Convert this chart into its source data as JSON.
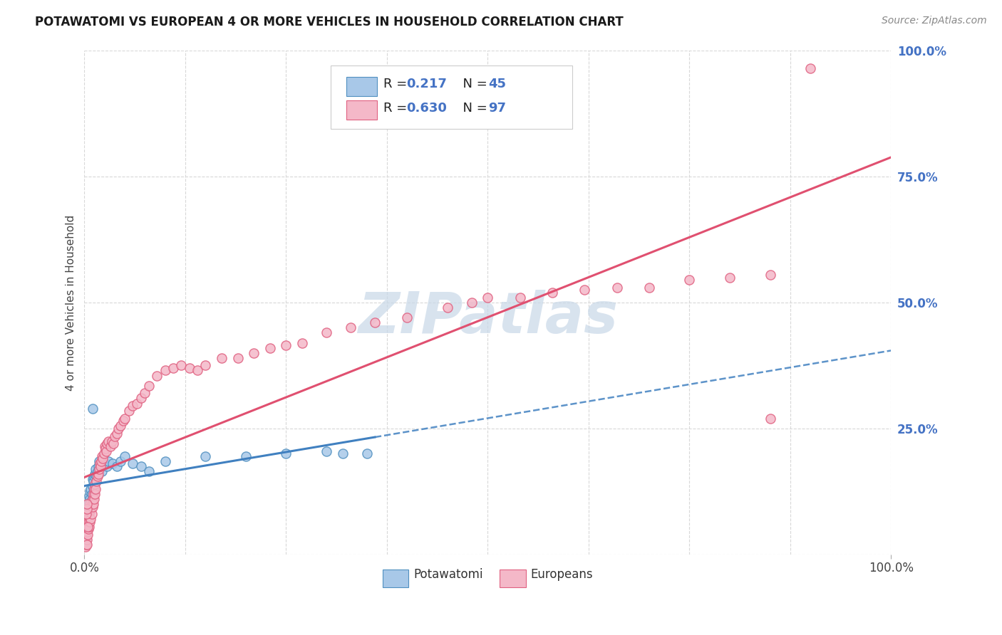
{
  "title": "POTAWATOMI VS EUROPEAN 4 OR MORE VEHICLES IN HOUSEHOLD CORRELATION CHART",
  "source": "Source: ZipAtlas.com",
  "ylabel": "4 or more Vehicles in Household",
  "blue_color": "#a8c8e8",
  "pink_color": "#f4b8c8",
  "blue_edge_color": "#5090c0",
  "pink_edge_color": "#e06080",
  "blue_line_color": "#4080c0",
  "pink_line_color": "#e05070",
  "watermark_color": "#c8d8e8",
  "grid_color": "#d8d8d8",
  "background_color": "#ffffff",
  "right_tick_color": "#4472c4",
  "legend_r_color": "#222222",
  "legend_n_color": "#4472c4",
  "blue_r": "0.217",
  "blue_n": "45",
  "pink_r": "0.630",
  "pink_n": "97",
  "blue_label": "Potawatomi",
  "pink_label": "Europeans",
  "xlim": [
    0.0,
    1.0
  ],
  "ylim": [
    0.0,
    1.0
  ],
  "blue_x": [
    0.001,
    0.002,
    0.003,
    0.003,
    0.004,
    0.004,
    0.005,
    0.005,
    0.006,
    0.006,
    0.007,
    0.007,
    0.008,
    0.008,
    0.009,
    0.01,
    0.01,
    0.011,
    0.012,
    0.013,
    0.014,
    0.015,
    0.016,
    0.017,
    0.018,
    0.02,
    0.022,
    0.025,
    0.028,
    0.03,
    0.035,
    0.04,
    0.045,
    0.05,
    0.06,
    0.07,
    0.08,
    0.1,
    0.15,
    0.2,
    0.25,
    0.3,
    0.32,
    0.35,
    0.01
  ],
  "blue_y": [
    0.03,
    0.045,
    0.06,
    0.075,
    0.08,
    0.095,
    0.085,
    0.1,
    0.095,
    0.115,
    0.11,
    0.125,
    0.105,
    0.13,
    0.12,
    0.135,
    0.15,
    0.145,
    0.155,
    0.16,
    0.17,
    0.155,
    0.165,
    0.175,
    0.185,
    0.175,
    0.165,
    0.18,
    0.175,
    0.185,
    0.18,
    0.175,
    0.185,
    0.195,
    0.18,
    0.175,
    0.165,
    0.185,
    0.195,
    0.195,
    0.2,
    0.205,
    0.2,
    0.2,
    0.29
  ],
  "pink_x": [
    0.001,
    0.001,
    0.002,
    0.002,
    0.003,
    0.003,
    0.003,
    0.004,
    0.004,
    0.004,
    0.005,
    0.005,
    0.005,
    0.006,
    0.006,
    0.006,
    0.007,
    0.007,
    0.007,
    0.008,
    0.008,
    0.009,
    0.009,
    0.01,
    0.01,
    0.011,
    0.011,
    0.012,
    0.012,
    0.013,
    0.013,
    0.014,
    0.015,
    0.016,
    0.017,
    0.018,
    0.019,
    0.02,
    0.021,
    0.022,
    0.023,
    0.024,
    0.025,
    0.026,
    0.027,
    0.028,
    0.03,
    0.032,
    0.034,
    0.036,
    0.038,
    0.04,
    0.042,
    0.045,
    0.048,
    0.05,
    0.055,
    0.06,
    0.065,
    0.07,
    0.075,
    0.08,
    0.09,
    0.1,
    0.11,
    0.12,
    0.13,
    0.14,
    0.15,
    0.17,
    0.19,
    0.21,
    0.23,
    0.25,
    0.27,
    0.3,
    0.33,
    0.36,
    0.4,
    0.45,
    0.48,
    0.5,
    0.54,
    0.58,
    0.62,
    0.66,
    0.7,
    0.75,
    0.8,
    0.85,
    0.9,
    0.002,
    0.003,
    0.003,
    0.004,
    0.003,
    0.85
  ],
  "pink_y": [
    0.015,
    0.025,
    0.02,
    0.035,
    0.03,
    0.045,
    0.055,
    0.04,
    0.06,
    0.07,
    0.05,
    0.065,
    0.08,
    0.055,
    0.075,
    0.095,
    0.065,
    0.085,
    0.1,
    0.07,
    0.09,
    0.08,
    0.1,
    0.095,
    0.11,
    0.1,
    0.12,
    0.11,
    0.13,
    0.12,
    0.14,
    0.13,
    0.145,
    0.155,
    0.16,
    0.17,
    0.18,
    0.175,
    0.185,
    0.195,
    0.19,
    0.2,
    0.215,
    0.21,
    0.205,
    0.22,
    0.225,
    0.215,
    0.225,
    0.22,
    0.235,
    0.24,
    0.25,
    0.255,
    0.265,
    0.27,
    0.285,
    0.295,
    0.3,
    0.31,
    0.32,
    0.335,
    0.355,
    0.365,
    0.37,
    0.375,
    0.37,
    0.365,
    0.375,
    0.39,
    0.39,
    0.4,
    0.41,
    0.415,
    0.42,
    0.44,
    0.45,
    0.46,
    0.47,
    0.49,
    0.5,
    0.51,
    0.51,
    0.52,
    0.525,
    0.53,
    0.53,
    0.545,
    0.55,
    0.555,
    0.965,
    0.08,
    0.09,
    0.1,
    0.055,
    0.02,
    0.27
  ]
}
